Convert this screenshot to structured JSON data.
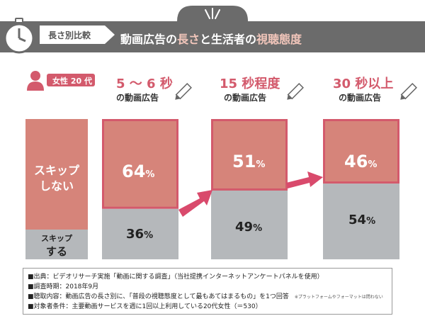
{
  "header": {
    "tab_label": "長さ別比較",
    "title_part1": "動画広告の",
    "title_hl1": "長さ",
    "title_part2": "と生活者の",
    "title_hl2": "視聴態度"
  },
  "badge": {
    "label": "女性 20 代"
  },
  "colors": {
    "pink": "#d35a6c",
    "salmon": "#d6847a",
    "gray": "#b5b8bb",
    "dark": "#6b6b6b",
    "arrow": "#d94a6c"
  },
  "legend_bar": {
    "skip_no_line1": "スキップ",
    "skip_no_line2": "しない",
    "skip_yes_line1": "スキップ",
    "skip_yes_line2": "する"
  },
  "chart_data": {
    "type": "bar",
    "stacked": true,
    "title": "動画広告の長さと生活者の視聴態度",
    "categories": [
      "5 〜 6 秒の動画広告",
      "15 秒程度の動画広告",
      "30 秒以上の動画広告"
    ],
    "category_labels": [
      {
        "top": "5 〜 6 秒",
        "sub": "の動画広告"
      },
      {
        "top": "15 秒程度",
        "sub": "の動画広告"
      },
      {
        "top": "30 秒以上",
        "sub": "の動画広告"
      }
    ],
    "series": [
      {
        "name": "スキップしない",
        "values": [
          64,
          51,
          46
        ]
      },
      {
        "name": "スキップする",
        "values": [
          36,
          49,
          54
        ]
      }
    ],
    "unit": "%",
    "ylim": [
      0,
      100
    ]
  },
  "footer": {
    "lines": [
      "■出典：ビデオリサーチ実施「動画に関する調査」（当社提携インターネットアンケートパネルを使用）",
      "■調査時期：2018年9月",
      "■聴取内容：動画広告の長さ別に、「普段の視聴態度として最もあてはまるもの」を1つ回答",
      "■対象者条件：主要動画サービスを週に1回以上利用している20代女性（＝530）"
    ],
    "note": "※プラットフォームやフォーマットは問わない"
  }
}
